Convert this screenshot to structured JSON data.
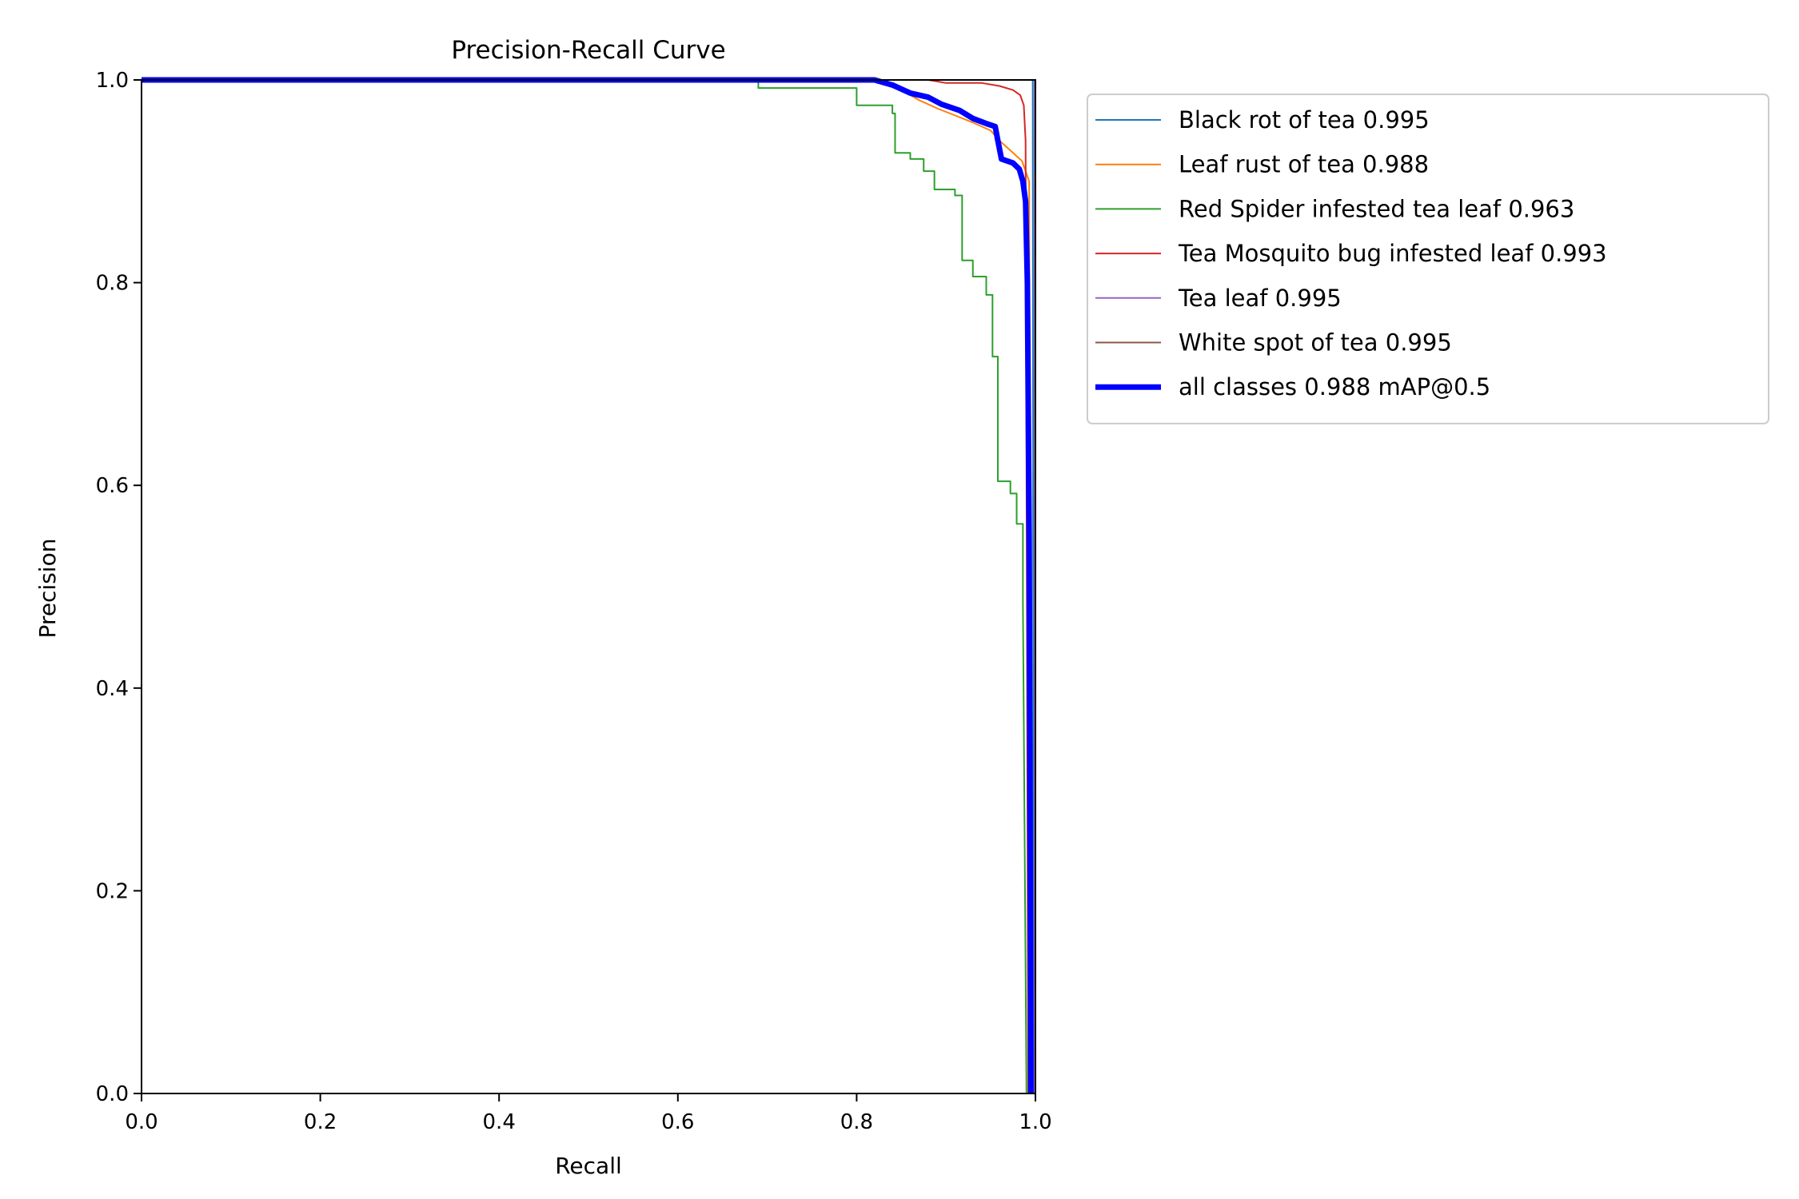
{
  "chart_data": {
    "type": "line",
    "title": "Precision-Recall Curve",
    "xlabel": "Recall",
    "ylabel": "Precision",
    "xlim": [
      0.0,
      1.0
    ],
    "ylim": [
      0.0,
      1.0
    ],
    "xticks": [
      "0.0",
      "0.2",
      "0.4",
      "0.6",
      "0.8",
      "1.0"
    ],
    "yticks": [
      "0.0",
      "0.2",
      "0.4",
      "0.6",
      "0.8",
      "1.0"
    ],
    "grid": false,
    "legend_position": "outside-right",
    "series": [
      {
        "name": "Black rot of tea 0.995",
        "color": "#1f77b4",
        "width": 2,
        "points": [
          [
            0,
            1.0
          ],
          [
            0.997,
            1.0
          ],
          [
            0.998,
            0.0
          ]
        ]
      },
      {
        "name": "Leaf rust of tea 0.988",
        "color": "#ff7f0e",
        "width": 2,
        "points": [
          [
            0,
            1.0
          ],
          [
            0.83,
            1.0
          ],
          [
            0.85,
            0.99
          ],
          [
            0.87,
            0.98
          ],
          [
            0.89,
            0.972
          ],
          [
            0.91,
            0.965
          ],
          [
            0.93,
            0.958
          ],
          [
            0.95,
            0.95
          ],
          [
            0.96,
            0.94
          ],
          [
            0.975,
            0.928
          ],
          [
            0.985,
            0.92
          ],
          [
            0.993,
            0.9
          ],
          [
            0.995,
            0.0
          ]
        ]
      },
      {
        "name": "Red Spider infested tea leaf 0.963",
        "color": "#2ca02c",
        "width": 2,
        "points": [
          [
            0,
            1.0
          ],
          [
            0.69,
            1.0
          ],
          [
            0.69,
            0.992
          ],
          [
            0.8,
            0.992
          ],
          [
            0.8,
            0.975
          ],
          [
            0.84,
            0.975
          ],
          [
            0.84,
            0.967
          ],
          [
            0.843,
            0.967
          ],
          [
            0.843,
            0.928
          ],
          [
            0.86,
            0.928
          ],
          [
            0.86,
            0.922
          ],
          [
            0.875,
            0.922
          ],
          [
            0.875,
            0.91
          ],
          [
            0.887,
            0.91
          ],
          [
            0.887,
            0.892
          ],
          [
            0.91,
            0.892
          ],
          [
            0.91,
            0.886
          ],
          [
            0.918,
            0.886
          ],
          [
            0.918,
            0.822
          ],
          [
            0.93,
            0.822
          ],
          [
            0.93,
            0.806
          ],
          [
            0.945,
            0.806
          ],
          [
            0.945,
            0.788
          ],
          [
            0.952,
            0.788
          ],
          [
            0.952,
            0.727
          ],
          [
            0.958,
            0.727
          ],
          [
            0.958,
            0.604
          ],
          [
            0.972,
            0.604
          ],
          [
            0.972,
            0.592
          ],
          [
            0.979,
            0.592
          ],
          [
            0.979,
            0.562
          ],
          [
            0.986,
            0.562
          ],
          [
            0.986,
            0.485
          ],
          [
            0.99,
            0.0
          ]
        ]
      },
      {
        "name": "Tea Mosquito bug infested leaf 0.993",
        "color": "#d62728",
        "width": 2,
        "points": [
          [
            0,
            1.0
          ],
          [
            0.88,
            1.0
          ],
          [
            0.9,
            0.997
          ],
          [
            0.94,
            0.997
          ],
          [
            0.96,
            0.994
          ],
          [
            0.975,
            0.99
          ],
          [
            0.983,
            0.985
          ],
          [
            0.987,
            0.975
          ],
          [
            0.989,
            0.94
          ],
          [
            0.992,
            0.0
          ]
        ]
      },
      {
        "name": "Tea leaf 0.995",
        "color": "#9467bd",
        "width": 2,
        "points": [
          [
            0,
            1.0
          ],
          [
            0.999,
            1.0
          ],
          [
            0.999,
            0.0
          ]
        ]
      },
      {
        "name": "White spot of tea 0.995",
        "color": "#8c564b",
        "width": 2,
        "points": [
          [
            0,
            1.0
          ],
          [
            1.0,
            1.0
          ],
          [
            1.0,
            0.0
          ]
        ]
      },
      {
        "name": "all classes 0.988 mAP@0.5",
        "color": "#0000ff",
        "width": 7,
        "points": [
          [
            0,
            1.0
          ],
          [
            0.82,
            1.0
          ],
          [
            0.84,
            0.995
          ],
          [
            0.86,
            0.987
          ],
          [
            0.88,
            0.983
          ],
          [
            0.895,
            0.976
          ],
          [
            0.915,
            0.97
          ],
          [
            0.93,
            0.962
          ],
          [
            0.945,
            0.957
          ],
          [
            0.955,
            0.954
          ],
          [
            0.958,
            0.94
          ],
          [
            0.962,
            0.922
          ],
          [
            0.975,
            0.918
          ],
          [
            0.982,
            0.912
          ],
          [
            0.986,
            0.9
          ],
          [
            0.989,
            0.88
          ],
          [
            0.991,
            0.8
          ],
          [
            0.993,
            0.55
          ],
          [
            0.995,
            0.0
          ]
        ]
      }
    ]
  }
}
